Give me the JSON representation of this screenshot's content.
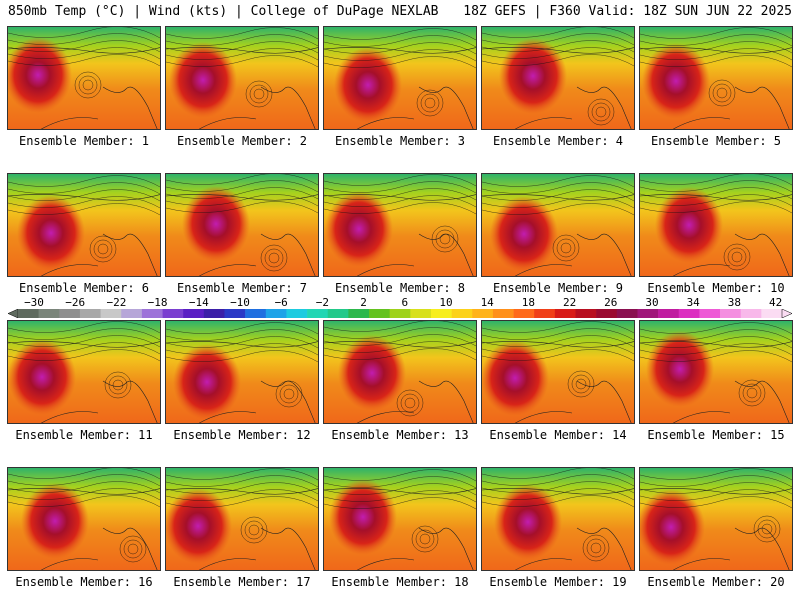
{
  "header": {
    "left": "850mb Temp (°C) | Wind (kts) | College of DuPage NEXLAB",
    "right": "18Z GEFS | F360 Valid: 18Z SUN JUN 22 2025"
  },
  "panels": [
    {
      "label": "Ensemble Member: 1"
    },
    {
      "label": "Ensemble Member: 2"
    },
    {
      "label": "Ensemble Member: 3"
    },
    {
      "label": "Ensemble Member: 4"
    },
    {
      "label": "Ensemble Member: 5"
    },
    {
      "label": "Ensemble Member: 6"
    },
    {
      "label": "Ensemble Member: 7"
    },
    {
      "label": "Ensemble Member: 8"
    },
    {
      "label": "Ensemble Member: 9"
    },
    {
      "label": "Ensemble Member: 10"
    },
    {
      "label": "Ensemble Member: 11"
    },
    {
      "label": "Ensemble Member: 12"
    },
    {
      "label": "Ensemble Member: 13"
    },
    {
      "label": "Ensemble Member: 14"
    },
    {
      "label": "Ensemble Member: 15"
    },
    {
      "label": "Ensemble Member: 16"
    },
    {
      "label": "Ensemble Member: 17"
    },
    {
      "label": "Ensemble Member: 18"
    },
    {
      "label": "Ensemble Member: 19"
    },
    {
      "label": "Ensemble Member: 20"
    }
  ],
  "colorbar": {
    "ticks": [
      "−30",
      "−26",
      "−22",
      "−18",
      "−14",
      "−10",
      "−6",
      "−2",
      "2",
      "6",
      "10",
      "14",
      "18",
      "22",
      "26",
      "30",
      "34",
      "38",
      "42"
    ],
    "colors": [
      "#5f6b5f",
      "#7a857a",
      "#8e8e8e",
      "#a8a8a8",
      "#c8c8c8",
      "#b6a6d8",
      "#9d73d9",
      "#7a3fd0",
      "#5a1fc4",
      "#3b1fa8",
      "#2a39c6",
      "#1f6fe0",
      "#1ea3e8",
      "#1ecbe0",
      "#22d6b4",
      "#22c98a",
      "#2cb84c",
      "#63c21f",
      "#9fd21a",
      "#d8e01c",
      "#f7ee1e",
      "#fcd21a",
      "#ffb31a",
      "#ff901a",
      "#ff6a1a",
      "#f04018",
      "#d81c18",
      "#b80f20",
      "#9a0a30",
      "#8a1050",
      "#a0167a",
      "#c01ca0",
      "#dc2ec0",
      "#ee5ad6",
      "#f48ee0",
      "#f8b8ea",
      "#fbdcf3"
    ]
  }
}
